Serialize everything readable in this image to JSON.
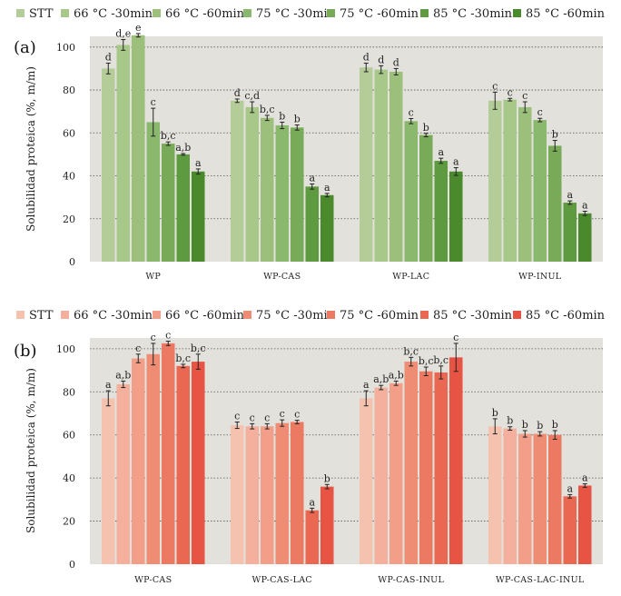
{
  "chart_data": [
    {
      "type": "bar",
      "panel_label": "(a)",
      "ylabel": "Solubilidad proteica (%, m/m)",
      "ylim": [
        0,
        105
      ],
      "yticks": [
        "0",
        "20",
        "40",
        "60",
        "80",
        "100"
      ],
      "grid": "horizontal dotted",
      "legend": [
        "STT",
        "66 °C -30min",
        "66 °C -60min",
        "75 °C -30min",
        "75 °C -60min",
        "85 °C -30min",
        "85 °C -60min"
      ],
      "colors": [
        "#b4cc98",
        "#a8c88a",
        "#9cc07c",
        "#8ab86c",
        "#78aa58",
        "#5e9a40",
        "#4a8a2c"
      ],
      "groups": [
        {
          "name": "WP",
          "values": [
            90,
            101,
            105.5,
            65,
            55,
            50,
            42
          ],
          "errors": [
            2.5,
            2.5,
            0.8,
            6.5,
            0.8,
            0.4,
            1.2
          ],
          "labels": [
            "d",
            "d,e",
            "e",
            "c",
            "b,c",
            "a,b",
            "a"
          ]
        },
        {
          "name": "WP-CAS",
          "values": [
            75,
            72,
            67,
            63.5,
            62.5,
            35,
            31
          ],
          "errors": [
            0.8,
            2.5,
            1.2,
            1.5,
            1.2,
            1.2,
            0.8
          ],
          "labels": [
            "d",
            "c,d",
            "b,c",
            "b",
            "b",
            "a",
            "a"
          ]
        },
        {
          "name": "WP-LAC",
          "values": [
            90.5,
            89.5,
            88.5,
            65.5,
            59,
            47,
            42
          ],
          "errors": [
            2.0,
            1.8,
            1.5,
            1.2,
            0.8,
            1.2,
            1.8
          ],
          "labels": [
            "d",
            "d",
            "d",
            "c",
            "b",
            "a",
            "a"
          ]
        },
        {
          "name": "WP-INUL",
          "values": [
            75,
            75.5,
            72,
            66,
            54,
            27.5,
            22.5
          ],
          "errors": [
            4.0,
            0.6,
            2.5,
            0.8,
            2.5,
            0.8,
            1.0
          ],
          "labels": [
            "c",
            "c",
            "c",
            "c",
            "b",
            "a",
            "a"
          ]
        }
      ]
    },
    {
      "type": "bar",
      "panel_label": "(b)",
      "ylabel": "Solubilidad proteica (%, m/m)",
      "ylim": [
        0,
        105
      ],
      "yticks": [
        "0",
        "20",
        "40",
        "60",
        "80",
        "100"
      ],
      "grid": "horizontal dotted",
      "legend": [
        "STT",
        "66 °C -30min",
        "66 °C -60min",
        "75 °C -30min",
        "75 °C -60min",
        "85 °C -30min",
        "85 °C -60min"
      ],
      "colors": [
        "#f6c2b0",
        "#f4b09c",
        "#f29e88",
        "#ee8c74",
        "#ec7a62",
        "#ea6852",
        "#e85444"
      ],
      "groups": [
        {
          "name": "WP-CAS",
          "values": [
            77,
            83.5,
            95.5,
            97.5,
            102.5,
            92,
            94
          ],
          "errors": [
            3.5,
            1.5,
            2.0,
            5.0,
            1.0,
            0.8,
            3.5
          ],
          "labels": [
            "a",
            "a,b",
            "c",
            "c",
            "c",
            "b,c",
            "b,c"
          ]
        },
        {
          "name": "WP-CAS-LAC",
          "values": [
            64.5,
            64,
            64,
            65.5,
            66,
            25,
            36
          ],
          "errors": [
            1.5,
            1.2,
            1.2,
            1.5,
            0.8,
            1.0,
            1.0
          ],
          "labels": [
            "c",
            "c",
            "c",
            "c",
            "c",
            "a",
            "b"
          ]
        },
        {
          "name": "WP-CAS-INUL",
          "values": [
            77,
            82,
            84,
            94,
            89.5,
            89,
            96
          ],
          "errors": [
            3.5,
            1.0,
            1.0,
            2.0,
            2.0,
            3.0,
            6.5
          ],
          "labels": [
            "a",
            "a,b",
            "a,b",
            "b,c",
            "b,c",
            "b,c",
            "c"
          ]
        },
        {
          "name": "WP-CAS-LAC-INUL",
          "values": [
            64,
            63,
            60.5,
            60.5,
            60,
            31.5,
            36.5
          ],
          "errors": [
            3.5,
            0.8,
            1.5,
            1.0,
            2.0,
            0.8,
            0.8
          ],
          "labels": [
            "b",
            "b",
            "b",
            "b",
            "b",
            "a",
            "a"
          ]
        }
      ]
    }
  ]
}
